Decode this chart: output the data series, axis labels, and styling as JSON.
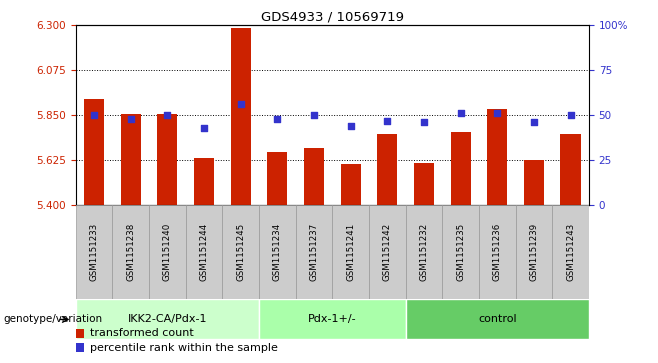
{
  "title": "GDS4933 / 10569719",
  "samples": [
    "GSM1151233",
    "GSM1151238",
    "GSM1151240",
    "GSM1151244",
    "GSM1151245",
    "GSM1151234",
    "GSM1151237",
    "GSM1151241",
    "GSM1151242",
    "GSM1151232",
    "GSM1151235",
    "GSM1151236",
    "GSM1151239",
    "GSM1151243"
  ],
  "red_values": [
    5.93,
    5.855,
    5.855,
    5.635,
    6.285,
    5.665,
    5.685,
    5.605,
    5.755,
    5.61,
    5.765,
    5.88,
    5.625,
    5.755
  ],
  "blue_values": [
    50,
    48,
    50,
    43,
    56,
    48,
    50,
    44,
    47,
    46,
    51,
    51,
    46,
    50
  ],
  "groups": [
    {
      "label": "IKK2-CA/Pdx-1",
      "start": 0,
      "end": 5,
      "color": "#ccffcc"
    },
    {
      "label": "Pdx-1+/-",
      "start": 5,
      "end": 9,
      "color": "#aaffaa"
    },
    {
      "label": "control",
      "start": 9,
      "end": 14,
      "color": "#66cc66"
    }
  ],
  "ylim_left": [
    5.4,
    6.3
  ],
  "ylim_right": [
    0,
    100
  ],
  "yticks_left": [
    5.4,
    5.625,
    5.85,
    6.075,
    6.3
  ],
  "yticks_right": [
    0,
    25,
    50,
    75,
    100
  ],
  "bar_color": "#cc2200",
  "dot_color": "#3333cc",
  "bar_bottom": 5.4,
  "label_red": "transformed count",
  "label_blue": "percentile rank within the sample",
  "genotype_label": "genotype/variation",
  "sample_box_color": "#cccccc",
  "sample_box_edge": "#999999"
}
